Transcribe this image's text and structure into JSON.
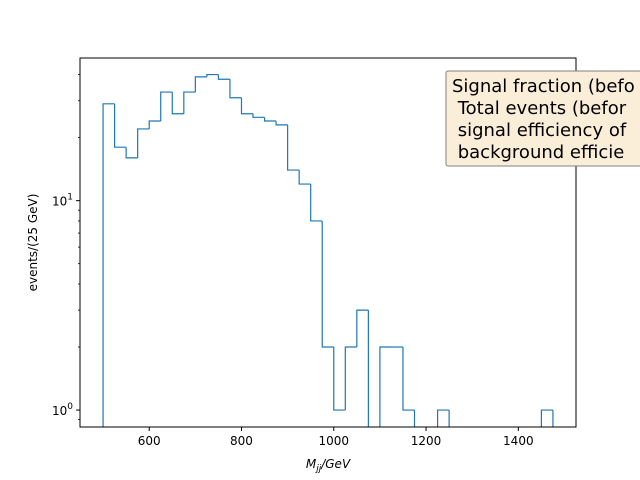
{
  "chart_data": {
    "type": "histogram-step",
    "xlabel_base": "M",
    "xlabel_sub": "jj",
    "xlabel_suffix": "/GeV",
    "ylabel": "events/(25 GeV)",
    "yscale": "log",
    "xlim": [
      450,
      1525
    ],
    "ylim": [
      0.83,
      48
    ],
    "x_ticks": [
      600,
      800,
      1000,
      1200,
      1400
    ],
    "x_tick_labels": [
      "600",
      "800",
      "1000",
      "1200",
      "1400"
    ],
    "y_ticks": [
      1,
      10
    ],
    "y_tick_labels_base": [
      "10",
      "10"
    ],
    "y_tick_labels_exp": [
      "0",
      "1"
    ],
    "line_color": "#1f77b4",
    "bin_width": 25,
    "bins": [
      {
        "x": 500,
        "count": 29
      },
      {
        "x": 525,
        "count": 18
      },
      {
        "x": 550,
        "count": 16
      },
      {
        "x": 575,
        "count": 22
      },
      {
        "x": 600,
        "count": 24
      },
      {
        "x": 625,
        "count": 33
      },
      {
        "x": 650,
        "count": 26
      },
      {
        "x": 675,
        "count": 33
      },
      {
        "x": 700,
        "count": 39
      },
      {
        "x": 725,
        "count": 40
      },
      {
        "x": 750,
        "count": 38
      },
      {
        "x": 775,
        "count": 31
      },
      {
        "x": 800,
        "count": 26
      },
      {
        "x": 825,
        "count": 25
      },
      {
        "x": 850,
        "count": 24
      },
      {
        "x": 875,
        "count": 23
      },
      {
        "x": 900,
        "count": 14
      },
      {
        "x": 925,
        "count": 12
      },
      {
        "x": 950,
        "count": 8
      },
      {
        "x": 975,
        "count": 2
      },
      {
        "x": 1000,
        "count": 1
      },
      {
        "x": 1025,
        "count": 2
      },
      {
        "x": 1050,
        "count": 3
      },
      {
        "x": 1075,
        "count": 0
      },
      {
        "x": 1100,
        "count": 2
      },
      {
        "x": 1125,
        "count": 2
      },
      {
        "x": 1150,
        "count": 1
      },
      {
        "x": 1175,
        "count": 0
      },
      {
        "x": 1200,
        "count": 0
      },
      {
        "x": 1225,
        "count": 1
      },
      {
        "x": 1250,
        "count": 0
      },
      {
        "x": 1275,
        "count": 0
      },
      {
        "x": 1300,
        "count": 0
      },
      {
        "x": 1325,
        "count": 0
      },
      {
        "x": 1350,
        "count": 0
      },
      {
        "x": 1375,
        "count": 0
      },
      {
        "x": 1400,
        "count": 0
      },
      {
        "x": 1425,
        "count": 0
      },
      {
        "x": 1450,
        "count": 1
      }
    ],
    "annotation": {
      "lines": [
        "Signal fraction (befo",
        " Total events (befor",
        " signal efficiency of",
        " background efficie"
      ],
      "box_fill": "#fbeed9",
      "box_stroke": "#808080"
    }
  }
}
